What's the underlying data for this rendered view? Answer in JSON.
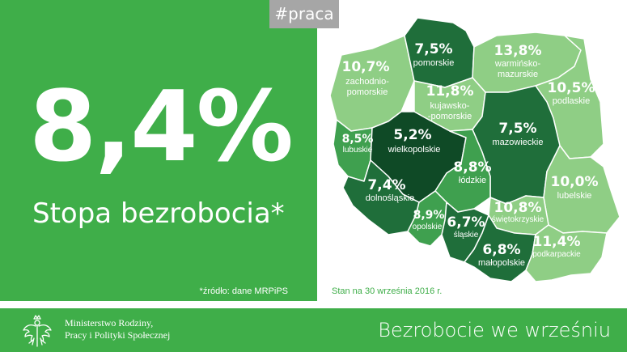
{
  "hashtag": "#praca",
  "headline": {
    "rate": "8,4%",
    "label": "Stopa bezrobocia*"
  },
  "source_note": "*źródło: dane MRPiPS",
  "date_note": "Stan na 30 września 2016 r.",
  "ministry": {
    "line1": "Ministerstwo Rodziny,",
    "line2": "Pracy i Polityki Społecznej",
    "emblem_icon": "eagle-emblem-icon"
  },
  "footer_title": "Bezrobocie we wrześniu",
  "colors": {
    "brand_green": "#3fae49",
    "light": "#8fce85",
    "medium": "#3fa04f",
    "dark": "#1f6e3a",
    "darkest": "#0f4a26",
    "tag_grey": "#a6a6a6"
  },
  "voivodeships": [
    {
      "id": "zachodniopomorskie",
      "rate": "10,7%",
      "name_lines": [
        "zachodnio-",
        "pomorskie"
      ],
      "shade": "light"
    },
    {
      "id": "pomorskie",
      "rate": "7,5%",
      "name_lines": [
        "pomorskie"
      ],
      "shade": "dark"
    },
    {
      "id": "warminsko-mazurskie",
      "rate": "13,8%",
      "name_lines": [
        "warmińsko-",
        "mazurskie"
      ],
      "shade": "light"
    },
    {
      "id": "podlaskie",
      "rate": "10,5%",
      "name_lines": [
        "podlaskie"
      ],
      "shade": "light"
    },
    {
      "id": "kujawsko-pomorskie",
      "rate": "11,8%",
      "name_lines": [
        "kujawsko-",
        "-pomorskie"
      ],
      "shade": "light"
    },
    {
      "id": "lubuskie",
      "rate": "8,5%",
      "name_lines": [
        "lubuskie"
      ],
      "shade": "medium"
    },
    {
      "id": "wielkopolskie",
      "rate": "5,2%",
      "name_lines": [
        "wielkopolskie"
      ],
      "shade": "darkest"
    },
    {
      "id": "mazowieckie",
      "rate": "7,5%",
      "name_lines": [
        "mazowieckie"
      ],
      "shade": "dark"
    },
    {
      "id": "lodzkie",
      "rate": "8,8%",
      "name_lines": [
        "łódzkie"
      ],
      "shade": "medium"
    },
    {
      "id": "dolnoslaskie",
      "rate": "7,4%",
      "name_lines": [
        "dolnośląskie"
      ],
      "shade": "dark"
    },
    {
      "id": "lubelskie",
      "rate": "10,0%",
      "name_lines": [
        "lubelskie"
      ],
      "shade": "light"
    },
    {
      "id": "swietokrzyskie",
      "rate": "10,8%",
      "name_lines": [
        "świętokrzyskie"
      ],
      "shade": "light"
    },
    {
      "id": "opolskie",
      "rate": "8,9%",
      "name_lines": [
        "opolskie"
      ],
      "shade": "medium"
    },
    {
      "id": "slaskie",
      "rate": "6,7%",
      "name_lines": [
        "śląskie"
      ],
      "shade": "dark"
    },
    {
      "id": "malopolskie",
      "rate": "6,8%",
      "name_lines": [
        "małopolskie"
      ],
      "shade": "dark"
    },
    {
      "id": "podkarpackie",
      "rate": "11,4%",
      "name_lines": [
        "podkarpackie"
      ],
      "shade": "light"
    }
  ]
}
